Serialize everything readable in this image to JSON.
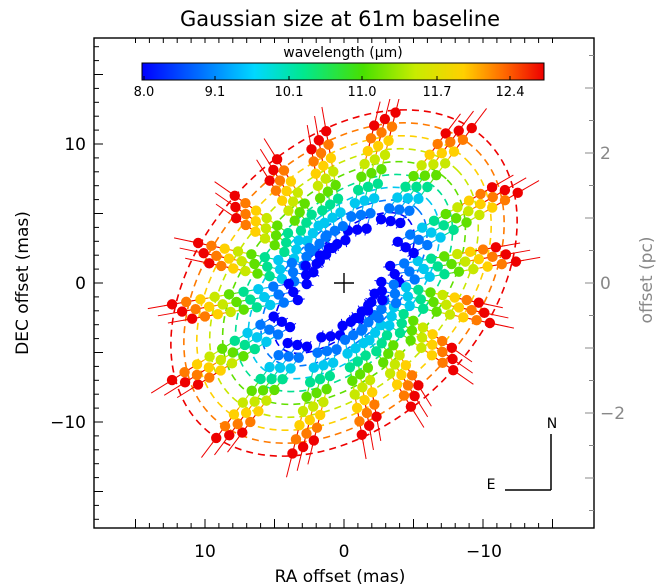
{
  "chart_data": {
    "type": "scatter",
    "title": "Gaussian size at 61m baseline",
    "xlabel": "RA offset (mas)",
    "ylabel": "DEC offset (mas)",
    "ylabel_right": "offset (pc)",
    "xlim": [
      18,
      -18
    ],
    "ylim": [
      -17.5,
      17.5
    ],
    "x_ticks": [
      "10",
      "0",
      "−10"
    ],
    "y_ticks": [
      "10",
      "0",
      "−10"
    ],
    "y2_ticks": [
      "2",
      "0",
      "−2"
    ],
    "colorbar": {
      "label": "wavelength (μm)",
      "ticks": [
        "8.0",
        "9.1",
        "10.1",
        "11.0",
        "11.7",
        "12.4"
      ]
    },
    "compass": {
      "north": "N",
      "east": "E"
    },
    "ellipses": {
      "orientation_deg": 45,
      "count": 9,
      "innermost": {
        "semi_major": 6.5,
        "semi_minor": 3.0
      },
      "outermost": {
        "semi_major": 14.5,
        "semi_minor": 10.0
      }
    },
    "directions_deg": [
      10,
      30,
      53,
      76,
      100,
      122,
      145,
      168,
      190,
      212,
      233,
      256,
      280,
      302,
      325,
      348
    ],
    "wavelength_colors": [
      "#0000ff",
      "#0077ff",
      "#00c8f0",
      "#00e090",
      "#60e000",
      "#c8e800",
      "#ffd000",
      "#ff7a00",
      "#ee0000"
    ]
  }
}
